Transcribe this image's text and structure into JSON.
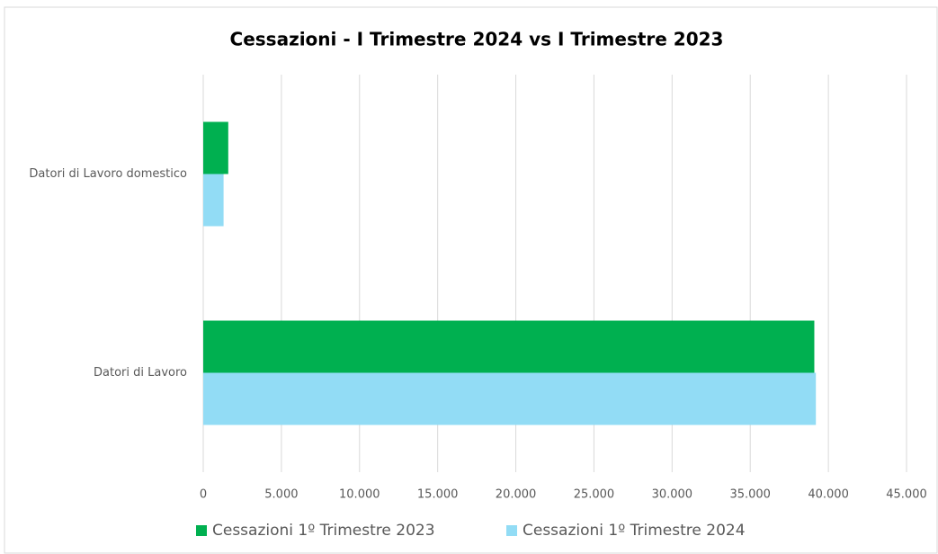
{
  "chart_data": {
    "type": "hbar",
    "title": "Cessazioni - I Trimestre 2024 vs I Trimestre 2023",
    "categories": [
      "Datori di Lavoro domestico",
      "Datori di Lavoro"
    ],
    "series": [
      {
        "name": "Cessazioni 1º Trimestre 2023",
        "color": "#00b050",
        "values": [
          1600,
          39100
        ]
      },
      {
        "name": "Cessazioni 1º Trimestre 2024",
        "color": "#92dcf5",
        "values": [
          1300,
          39200
        ]
      }
    ],
    "xlim": [
      0,
      45000
    ],
    "xticks": [
      0,
      {
        "value": 5000,
        "label": "5.000"
      },
      {
        "value": 10000,
        "label": "10.000"
      },
      {
        "value": 15000,
        "label": "15.000"
      },
      {
        "value": 20000,
        "label": "20.000"
      },
      {
        "value": 25000,
        "label": "25.000"
      },
      {
        "value": 30000,
        "label": "30.000"
      },
      {
        "value": 35000,
        "label": "35.000"
      },
      {
        "value": 40000,
        "label": "40.000"
      },
      {
        "value": 45000,
        "label": "45.000"
      }
    ],
    "grid": true,
    "legend": "bottom"
  }
}
